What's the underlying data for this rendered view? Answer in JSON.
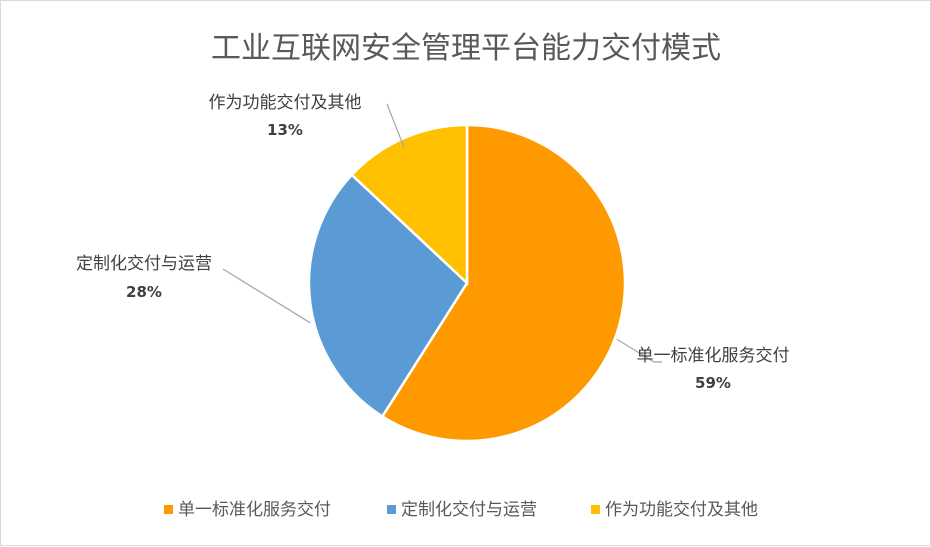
{
  "chart_data": {
    "type": "pie",
    "title": "工业互联网安全管理平台能力交付模式",
    "slices": [
      {
        "name": "单一标准化服务交付",
        "value": 59,
        "label": "59%",
        "color": "#FF9900"
      },
      {
        "name": "定制化交付与运营",
        "value": 28,
        "label": "28%",
        "color": "#5B9BD5"
      },
      {
        "name": "作为功能交付及其他",
        "value": 13,
        "label": "13%",
        "color": "#FFC000"
      }
    ],
    "legend_position": "bottom"
  }
}
